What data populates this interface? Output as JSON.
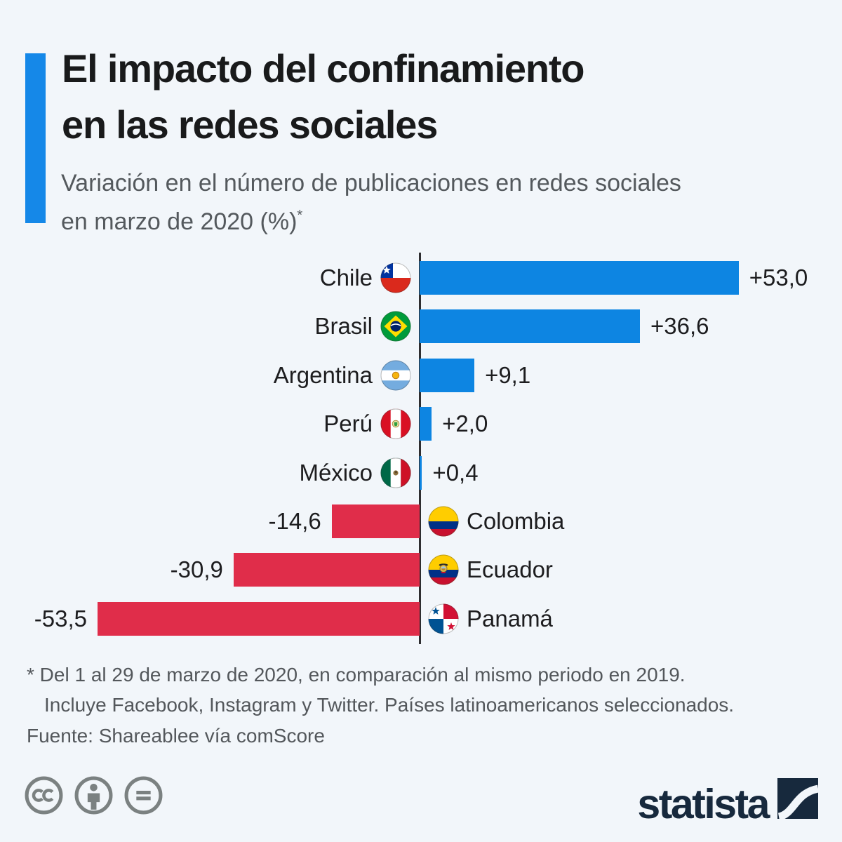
{
  "meta": {
    "background": "#f2f6fa"
  },
  "header": {
    "accent_color": "#1588e8",
    "title_line1": "El impacto del confinamiento",
    "title_line2": "en las redes sociales",
    "subtitle_line1": "Variación en el número de publicaciones en redes sociales",
    "subtitle_line2": "en marzo de 2020 (%)",
    "subtitle_footnote_marker": "*"
  },
  "chart_data": {
    "type": "bar",
    "orientation": "horizontal",
    "title": "Variación en el número de publicaciones en redes sociales en marzo de 2020 (%)",
    "value_unit": "percent",
    "xlim": [
      -60,
      60
    ],
    "grid": false,
    "zero_axis_line": true,
    "positive_color": "#0d85e2",
    "negative_color": "#e02d4a",
    "categories": [
      "Chile",
      "Brasil",
      "Argentina",
      "Perú",
      "México",
      "Colombia",
      "Ecuador",
      "Panamá"
    ],
    "values": [
      53.0,
      36.6,
      9.1,
      2.0,
      0.4,
      -14.6,
      -30.9,
      -53.5
    ],
    "value_labels": [
      "+53,0",
      "+36,6",
      "+9,1",
      "+2,0",
      "+0,4",
      "-14,6",
      "-30,9",
      "-53,5"
    ],
    "flags": [
      "cl",
      "br",
      "ar",
      "pe",
      "mx",
      "co",
      "ec",
      "pa"
    ]
  },
  "footnote": {
    "line1": "* Del 1 al 29 de marzo de 2020, en comparación al mismo periodo en 2019.",
    "line2": "Incluye Facebook, Instagram y Twitter. Países latinoamericanos seleccionados.",
    "source": "Fuente: Shareablee vía comScore"
  },
  "footer": {
    "license_icons": [
      "cc",
      "attribution",
      "no-derivatives"
    ],
    "icon_color": "#7b8181",
    "brand": "statista",
    "brand_color": "#17293d"
  }
}
